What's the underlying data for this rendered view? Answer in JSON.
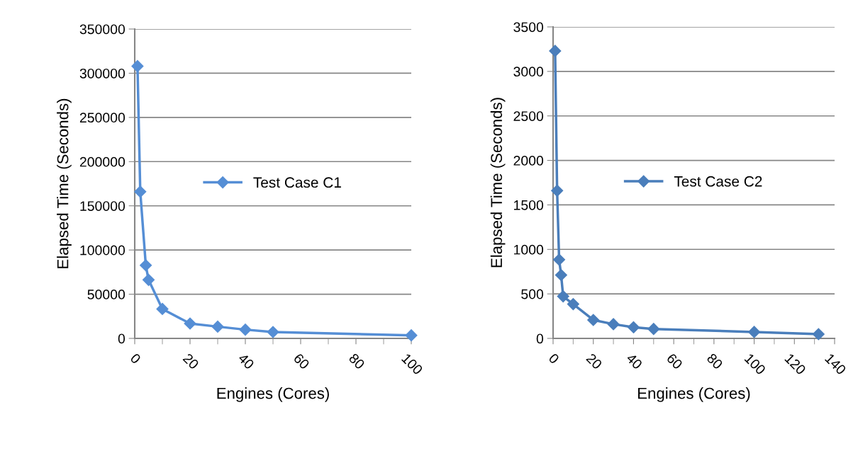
{
  "chart_data": [
    {
      "type": "line",
      "xlabel": "Engines (Cores)",
      "ylabel": "Elapsed Time (Seconds)",
      "legend": "center",
      "marker": "diamond",
      "grid": "y",
      "series": [
        {
          "name": "Test Case C1",
          "color": "#558ed5",
          "x": [
            1,
            2,
            4,
            5,
            10,
            20,
            30,
            40,
            50,
            100
          ],
          "values": [
            308000,
            166000,
            82700,
            66200,
            33300,
            16800,
            13300,
            9900,
            7200,
            3500
          ]
        }
      ],
      "xlim": [
        0,
        100
      ],
      "xticks": [
        0,
        20,
        40,
        60,
        80,
        100
      ],
      "ylim": [
        0,
        350000
      ],
      "yticks": [
        0,
        50000,
        100000,
        150000,
        200000,
        250000,
        300000,
        350000
      ]
    },
    {
      "type": "line",
      "xlabel": "Engines (Cores)",
      "ylabel": "Elapsed Time (Seconds)",
      "legend": "center",
      "marker": "diamond",
      "grid": "y",
      "series": [
        {
          "name": "Test Case C2",
          "color": "#4a7ebb",
          "x": [
            1,
            2,
            3,
            4,
            5,
            10,
            20,
            30,
            40,
            50,
            100,
            132
          ],
          "values": [
            3230,
            1660,
            885,
            712,
            473,
            385,
            207,
            160,
            125,
            106,
            72,
            48
          ]
        }
      ],
      "xlim": [
        0,
        140
      ],
      "xticks": [
        0,
        20,
        40,
        60,
        80,
        100,
        120,
        140
      ],
      "ylim": [
        0,
        3500
      ],
      "yticks": [
        0,
        500,
        1000,
        1500,
        2000,
        2500,
        3000,
        3500
      ]
    }
  ]
}
